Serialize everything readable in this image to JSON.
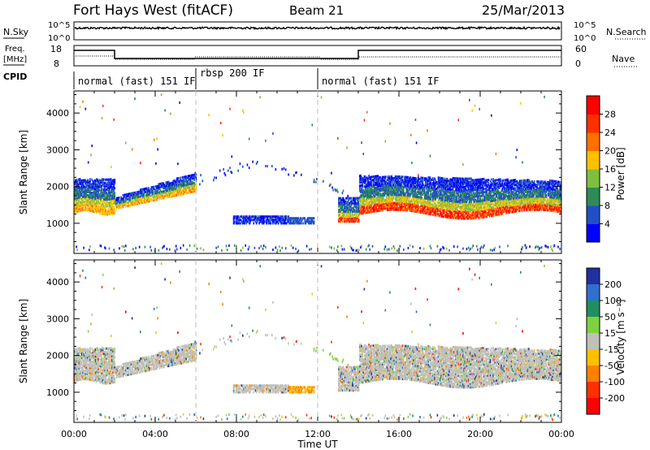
{
  "header": {
    "station": "Fort Hays West (fitACF)",
    "beam": "Beam 21",
    "date": "25/Mar/2013"
  },
  "noise_panel": {
    "left_label": "N.Sky",
    "left_ticks": [
      "10^5",
      "10^0"
    ],
    "right_ticks": [
      "10^5",
      "10^0"
    ],
    "right_label": "N.Search"
  },
  "freq_panel": {
    "label_line1": "Freq.",
    "label_line2": "[MHz]",
    "left_ticks": [
      "18",
      "8"
    ],
    "right_ticks": [
      "60",
      "0"
    ],
    "right_label": "Nave"
  },
  "cpid_panel": {
    "label": "CPID",
    "segments": [
      {
        "name": "normal (fast) 151 IF",
        "start": 0,
        "end": 6
      },
      {
        "name": "rbsp 200 IF",
        "start": 6,
        "end": 12
      },
      {
        "name": "normal (fast) 151 IF",
        "start": 12,
        "end": 24
      }
    ]
  },
  "chart_data": {
    "type": "heatmap",
    "x_axis": {
      "title": "Time UT",
      "range": [
        0,
        24
      ],
      "tick_labels": [
        "00:00",
        "04:00",
        "08:00",
        "12:00",
        "16:00",
        "20:00",
        "00:00"
      ]
    },
    "y_axis": {
      "title": "Slant Range [km]",
      "range": [
        180,
        4600
      ],
      "tick_labels": [
        "1000",
        "2000",
        "3000",
        "4000"
      ]
    },
    "panels": [
      {
        "id": "power",
        "colorbar_title": "Power [dB]",
        "colorbar_ticks": [
          "28",
          "24",
          "20",
          "16",
          "12",
          "8",
          "4"
        ],
        "colors": [
          "#0000ff",
          "#2050c8",
          "#2e8b57",
          "#7fbf3f",
          "#ffc000",
          "#ff7000",
          "#ff3000",
          "#ff0000"
        ]
      },
      {
        "id": "velocity",
        "colorbar_title": "Velocity [m s⁻¹]",
        "colorbar_ticks": [
          "200",
          "100",
          "50",
          "15",
          "-15",
          "-50",
          "-100",
          "-200"
        ],
        "colors": [
          "#2030a0",
          "#2f6fcf",
          "#1f8f5f",
          "#7fd23f",
          "#c0c0b8",
          "#ffc000",
          "#ff8000",
          "#ff3000",
          "#ff0000"
        ]
      }
    ]
  }
}
